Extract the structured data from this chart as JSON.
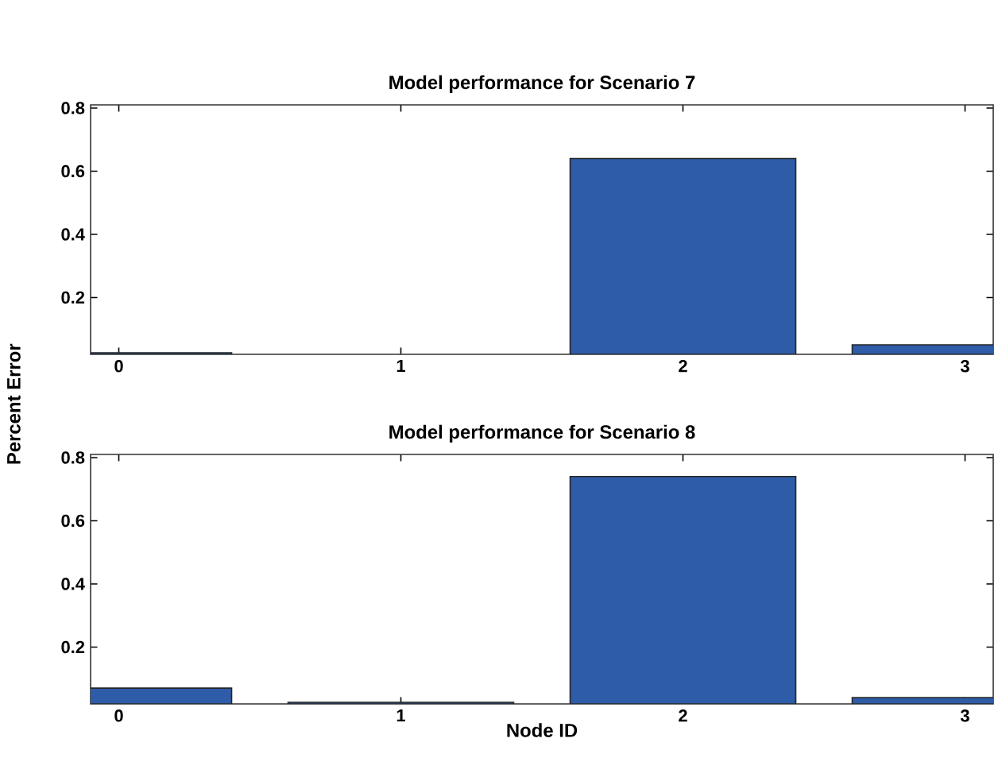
{
  "chart_data": [
    {
      "type": "bar",
      "title": "Model performance for Scenario 7",
      "ylabel": "Percent Error",
      "x": [
        0,
        1,
        2,
        3
      ],
      "values": [
        0.025,
        null,
        0.64,
        0.05
      ],
      "color": "#2e5ca8",
      "xlim": [
        -0.1,
        3.1
      ],
      "ylim": [
        0.02,
        0.81
      ],
      "xticks": [
        0,
        1,
        2,
        3
      ],
      "yticks": [
        0.2,
        0.4,
        0.6,
        0.8
      ],
      "grid": false
    },
    {
      "type": "bar",
      "title": "Model performance for Scenario 8",
      "xlabel": "Node ID",
      "x": [
        0,
        1,
        2,
        3
      ],
      "values": [
        0.07,
        0.025,
        0.74,
        0.04
      ],
      "color": "#2e5ca8",
      "xlim": [
        -0.1,
        3.1
      ],
      "ylim": [
        0.02,
        0.81
      ],
      "xticks": [
        0,
        1,
        2,
        3
      ],
      "yticks": [
        0.2,
        0.4,
        0.6,
        0.8
      ],
      "grid": false
    }
  ]
}
